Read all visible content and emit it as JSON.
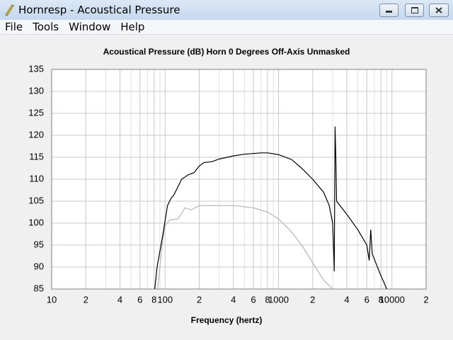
{
  "window": {
    "title": "Hornresp - Acoustical Pressure"
  },
  "menu": [
    "File",
    "Tools",
    "Window",
    "Help"
  ],
  "chart_data": {
    "type": "line",
    "title": "Acoustical Pressure (dB)   Horn   0 Degrees Off-Axis   Unmasked",
    "x_label": "Frequency (hertz)",
    "xscale": "log",
    "xlim": [
      10,
      20000
    ],
    "ylim": [
      85,
      135
    ],
    "xticks": [
      10,
      {
        "value": 20,
        "label": "2"
      },
      {
        "value": 40,
        "label": "4"
      },
      {
        "value": 60,
        "label": "6"
      },
      {
        "value": 80,
        "label": "8"
      },
      100,
      {
        "value": 200,
        "label": "2"
      },
      {
        "value": 400,
        "label": "4"
      },
      {
        "value": 600,
        "label": "6"
      },
      {
        "value": 800,
        "label": "8"
      },
      1000,
      {
        "value": 2000,
        "label": "2"
      },
      {
        "value": 4000,
        "label": "4"
      },
      {
        "value": 6000,
        "label": "6"
      },
      {
        "value": 8000,
        "label": "8"
      },
      10000,
      {
        "value": 20000,
        "label": "2"
      }
    ],
    "x_minor_grid": [
      30,
      50,
      70,
      90,
      300,
      500,
      700,
      900,
      3000,
      5000,
      7000,
      9000
    ],
    "yticks": [
      85,
      90,
      95,
      100,
      105,
      110,
      115,
      120,
      125,
      130,
      135
    ],
    "grid": true,
    "series": [
      {
        "color": "#000000",
        "x": [
          81,
          85,
          95,
          105,
          112,
          120,
          140,
          160,
          180,
          200,
          220,
          260,
          300,
          400,
          500,
          700,
          800,
          1000,
          1300,
          1600,
          2000,
          2500,
          2800,
          3000,
          3050,
          3100,
          3150,
          3200,
          3250,
          4000,
          5000,
          6000,
          6300,
          6500,
          6700,
          8000,
          9000
        ],
        "values": [
          85,
          90,
          97,
          104,
          105.5,
          106.5,
          110,
          111,
          111.5,
          113,
          113.8,
          114,
          114.6,
          115.3,
          115.7,
          116,
          116,
          115.6,
          114.5,
          112.5,
          110,
          107,
          104,
          100,
          95,
          89,
          122,
          115,
          105,
          102,
          98.5,
          95,
          91.5,
          98.5,
          93,
          88,
          85
        ]
      },
      {
        "color": "#b4b4b4",
        "x": [
          86,
          95,
          100,
          110,
          130,
          150,
          170,
          200,
          300,
          400,
          600,
          800,
          1000,
          1300,
          1600,
          2000,
          2500,
          3000
        ],
        "values": [
          85,
          96,
          99.5,
          100.7,
          101,
          103.5,
          103,
          104,
          104,
          104,
          103.5,
          102.5,
          101,
          98,
          95,
          91,
          87,
          85
        ]
      }
    ]
  }
}
